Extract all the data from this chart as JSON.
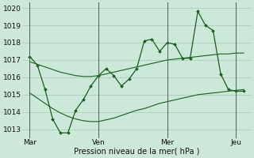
{
  "bg_color": "#cce8d8",
  "grid_color": "#a8c8b8",
  "line_color": "#1a5e20",
  "marker_color": "#1a5e20",
  "xlabel": "Pression niveau de la mer( hPa )",
  "ylim": [
    1012.5,
    1020.3
  ],
  "yticks": [
    1013,
    1014,
    1015,
    1016,
    1017,
    1018,
    1019,
    1020
  ],
  "day_labels": [
    "Mar",
    "Ven",
    "Mer",
    "Jeu"
  ],
  "day_positions": [
    0,
    9,
    18,
    27
  ],
  "n_points": 29,
  "main_line": [
    1017.2,
    1016.7,
    1015.3,
    1013.6,
    1012.8,
    1012.8,
    1014.1,
    1014.7,
    1015.5,
    1016.1,
    1016.5,
    1016.1,
    1015.5,
    1015.9,
    1016.5,
    1018.1,
    1018.2,
    1017.5,
    1018.0,
    1017.9,
    1017.1,
    1017.1,
    1019.8,
    1019.0,
    1018.7,
    1016.2,
    1015.3,
    1015.2,
    1015.2
  ],
  "trend_high": [
    1016.9,
    1016.75,
    1016.6,
    1016.45,
    1016.3,
    1016.2,
    1016.1,
    1016.05,
    1016.05,
    1016.1,
    1016.2,
    1016.3,
    1016.4,
    1016.5,
    1016.6,
    1016.7,
    1016.8,
    1016.9,
    1017.0,
    1017.05,
    1017.1,
    1017.15,
    1017.2,
    1017.25,
    1017.3,
    1017.35,
    1017.35,
    1017.4,
    1017.4
  ],
  "trend_low": [
    1015.1,
    1014.8,
    1014.5,
    1014.2,
    1013.95,
    1013.75,
    1013.6,
    1013.5,
    1013.45,
    1013.45,
    1013.55,
    1013.65,
    1013.8,
    1013.95,
    1014.1,
    1014.2,
    1014.35,
    1014.5,
    1014.6,
    1014.7,
    1014.8,
    1014.9,
    1015.0,
    1015.05,
    1015.1,
    1015.15,
    1015.2,
    1015.25,
    1015.3
  ]
}
